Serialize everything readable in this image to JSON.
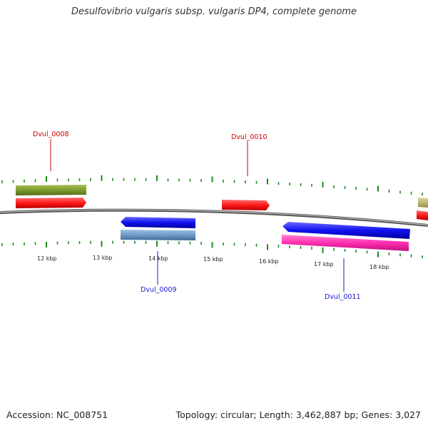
{
  "title": "Desulfovibrio vulgaris subsp. vulgaris DP4, complete genome",
  "footer": {
    "accession": "Accession: NC_008751",
    "summary": "Topology: circular; Length: 3,462,887 bp; Genes: 3,027"
  },
  "colors": {
    "forward_gene": "#ff1a1a",
    "forward_cds_track": "#7f9a2d",
    "reverse_gene": "#1a1aff",
    "reverse_cds_track": "#6f9bc6",
    "rna_track": "#ff2fb0",
    "tick": "#1a8a1a",
    "backbone": "#8c8c8c",
    "forward_label": "#cc0000",
    "reverse_label": "#1a1acc"
  },
  "scale": {
    "unit": "kbp",
    "labels": [
      "12 kbp",
      "13 kbp",
      "14 kbp",
      "15 kbp",
      "16 kbp",
      "17 kbp",
      "18 kbp"
    ]
  },
  "genes": [
    {
      "id": "Dvul_0008",
      "strand": "forward"
    },
    {
      "id": "Dvul_0009",
      "strand": "reverse"
    },
    {
      "id": "Dvul_0010",
      "strand": "forward"
    },
    {
      "id": "Dvul_0011",
      "strand": "reverse"
    }
  ]
}
